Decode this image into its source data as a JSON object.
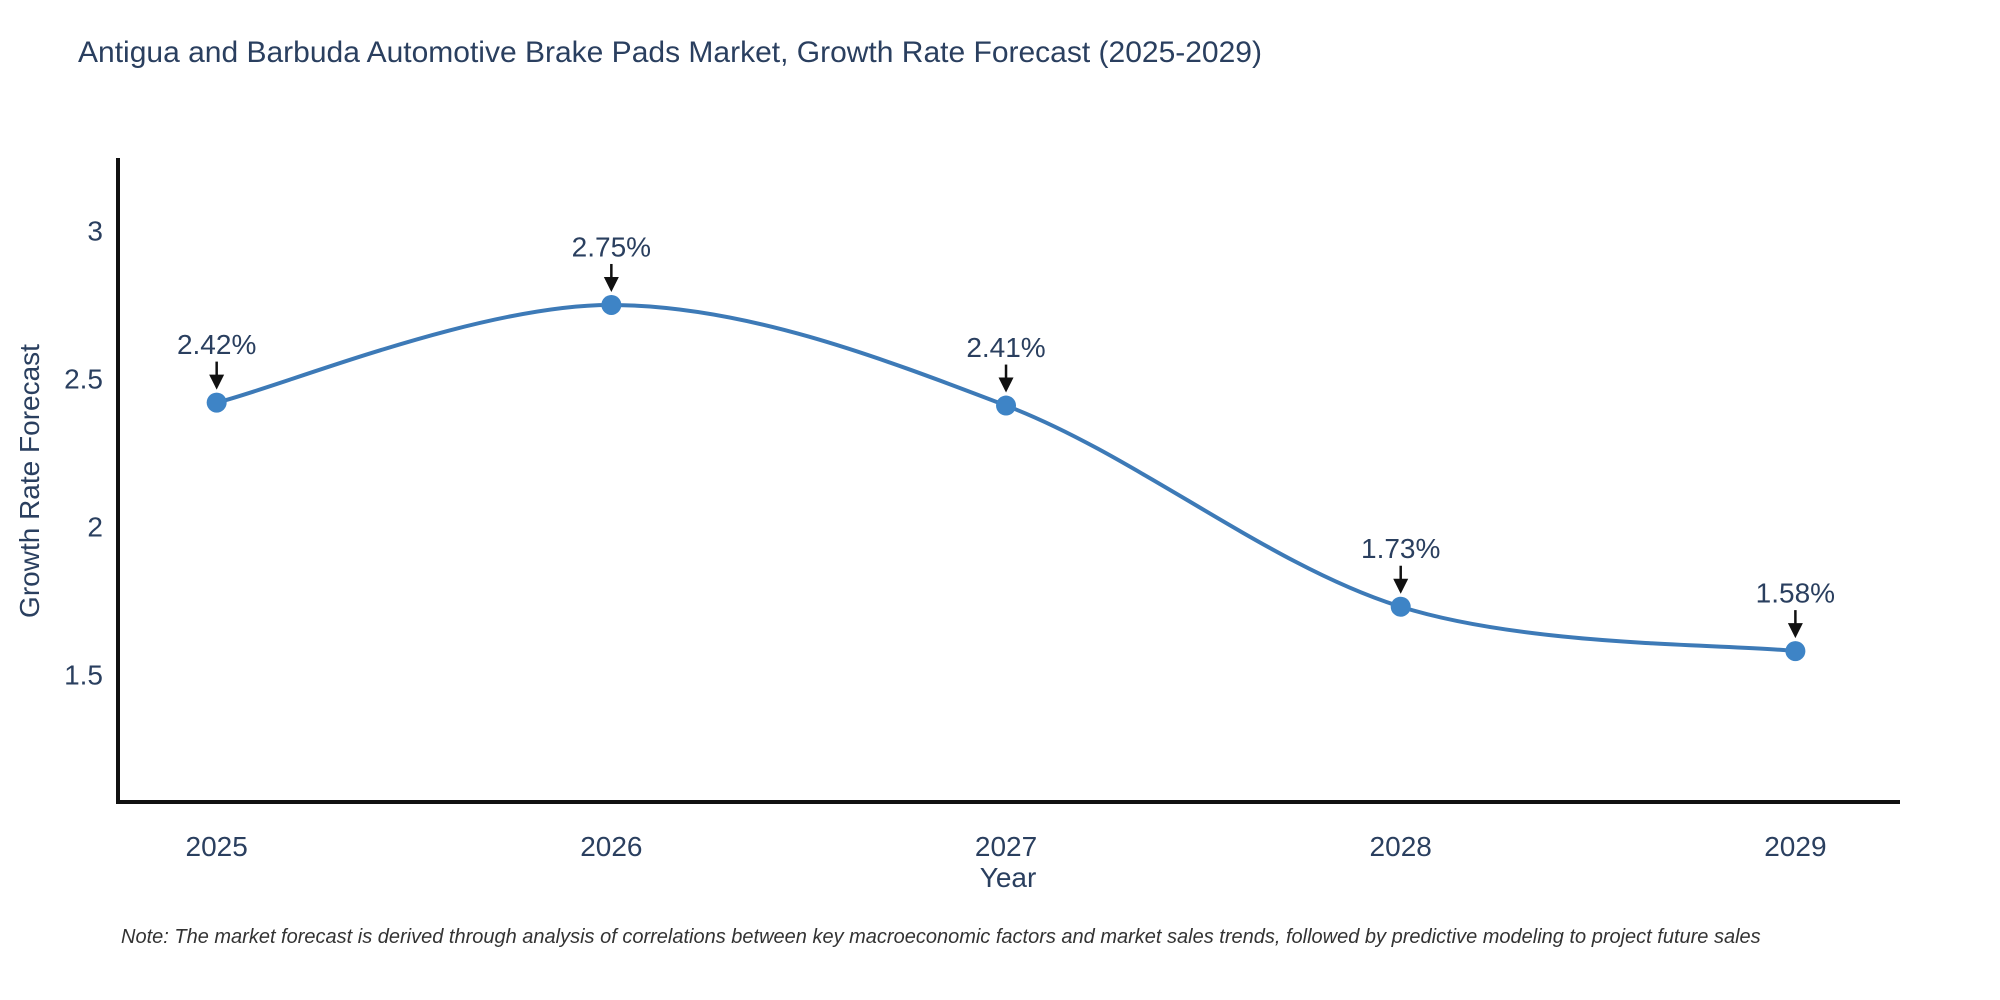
{
  "title": "Antigua and Barbuda Automotive Brake Pads Market, Growth Rate Forecast (2025-2029)",
  "note": "Note: The market forecast is derived through analysis of correlations between key macroeconomic factors and market sales trends, followed by predictive modeling to project future sales",
  "chart_data": {
    "type": "line",
    "title": "Antigua and Barbuda Automotive Brake Pads Market, Growth Rate Forecast (2025-2029)",
    "xlabel": "Year",
    "ylabel": "Growth Rate Forecast",
    "x": [
      2025,
      2026,
      2027,
      2028,
      2029
    ],
    "series": [
      {
        "name": "Growth Rate Forecast",
        "values": [
          2.42,
          2.75,
          2.41,
          1.73,
          1.58
        ]
      }
    ],
    "point_labels": [
      "2.42%",
      "2.75%",
      "2.41%",
      "1.73%",
      "1.58%"
    ],
    "xtick_labels": [
      "2025",
      "2026",
      "2027",
      "2028",
      "2029"
    ],
    "yticks": [
      1.5,
      2,
      2.5,
      3
    ],
    "ytick_labels": [
      "1.5",
      "2",
      "2.5",
      "3"
    ],
    "xlim": [
      2024.75,
      2029.26
    ],
    "ylim": [
      1.07,
      3.24
    ],
    "line_shape": "spline",
    "grid": false,
    "legend": false,
    "annotations_have_arrows": true,
    "colors": {
      "line": "#3d7ab7",
      "marker": "#3e84c6",
      "axis_text": "#2a3f5f",
      "spine": "#111111",
      "arrow": "#111111",
      "note_text": "#333333",
      "background": "#ffffff"
    }
  }
}
